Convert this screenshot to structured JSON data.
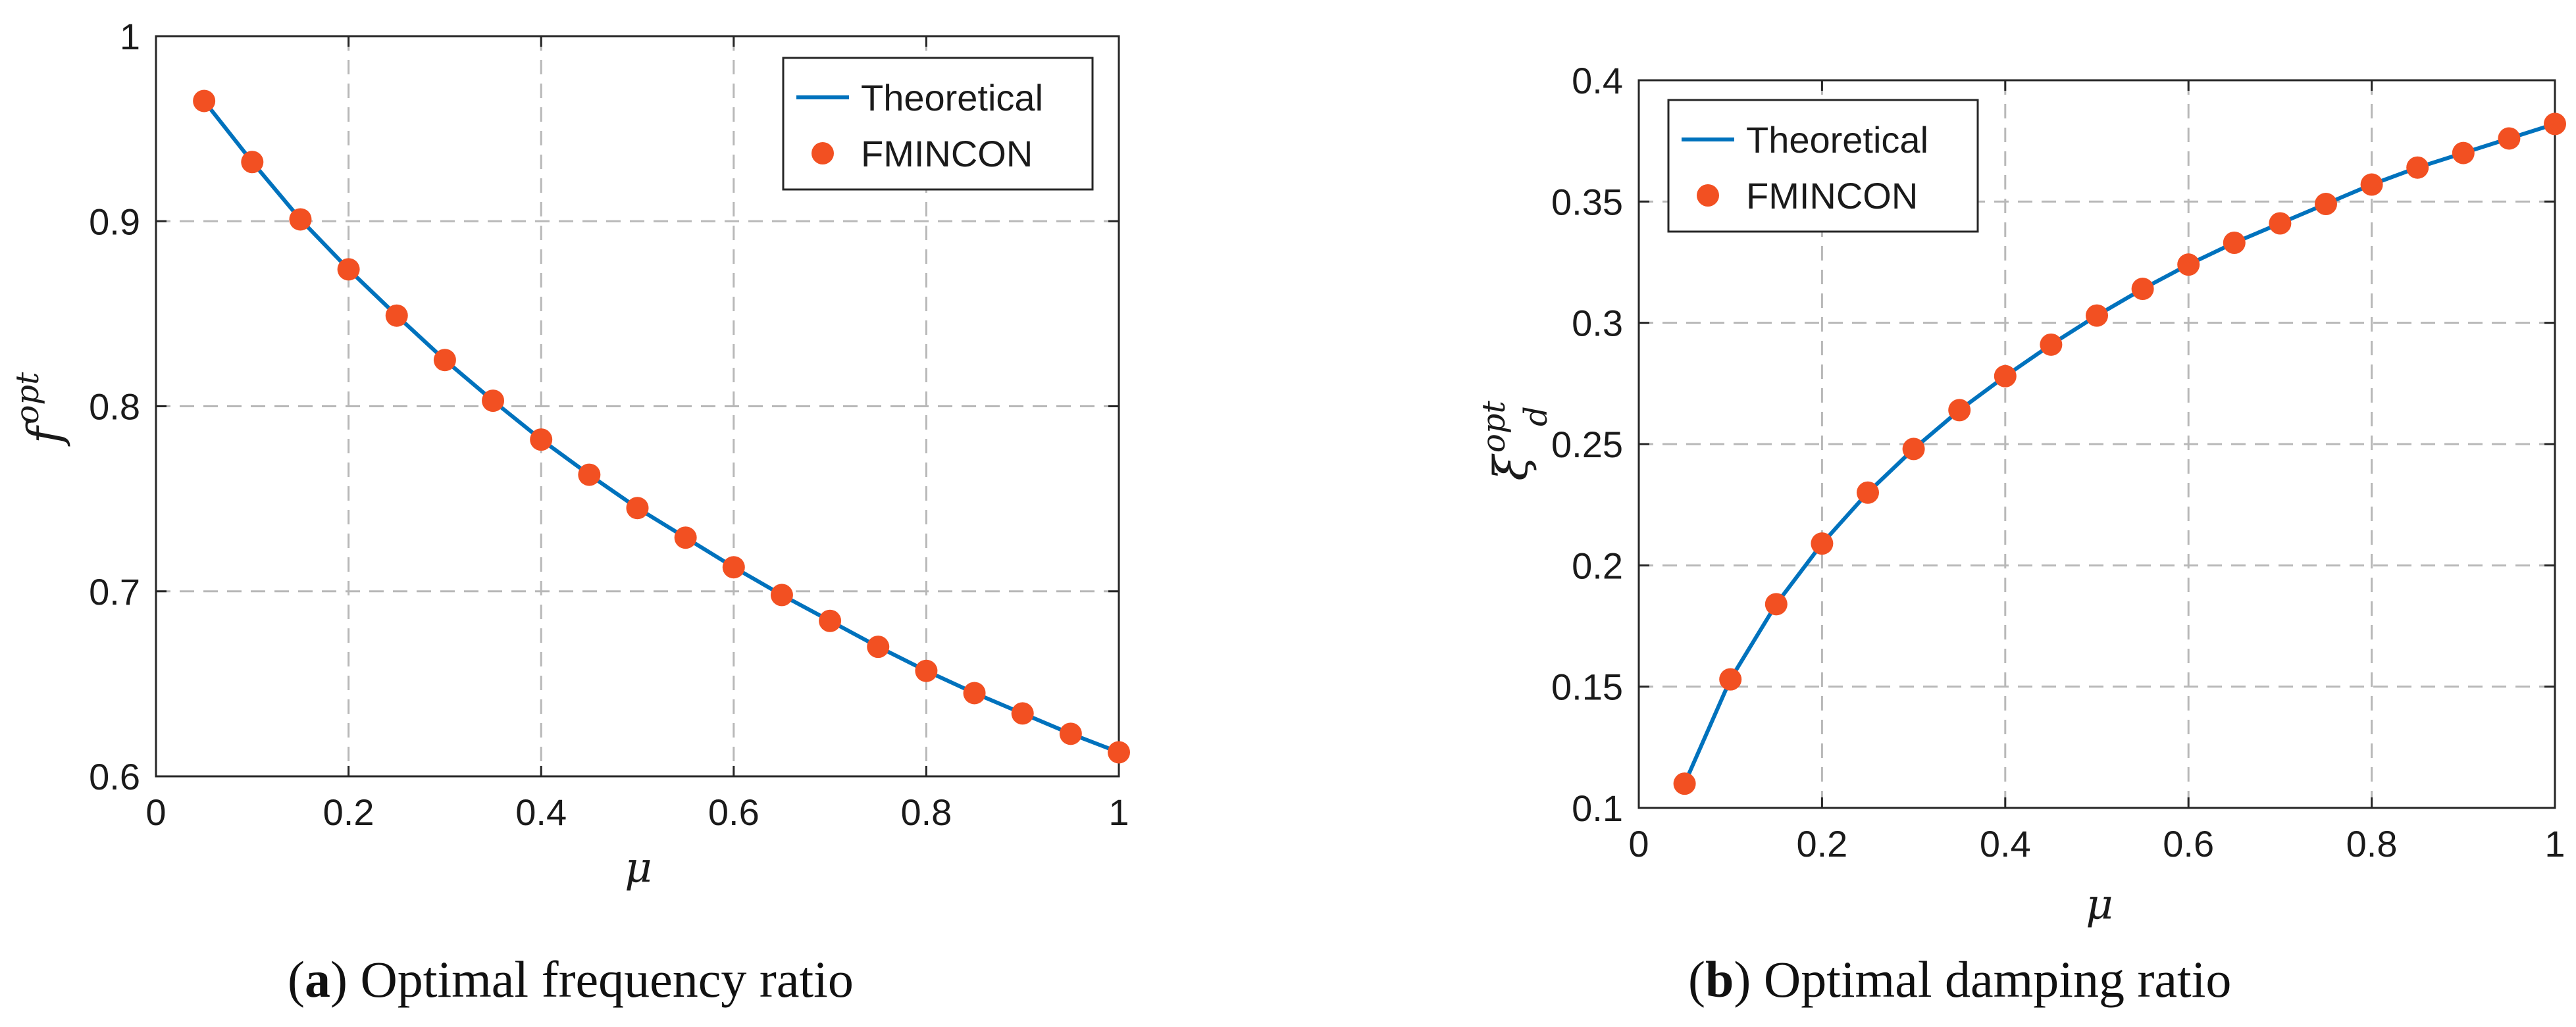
{
  "chart_data": [
    {
      "type": "line",
      "panel": "a",
      "caption_letter": "a",
      "caption_text": "Optimal frequency ratio",
      "xlabel": "μ",
      "ylabel_base": "f",
      "ylabel_sup": "opt",
      "xlim": [
        0,
        1
      ],
      "ylim": [
        0.6,
        1
      ],
      "xticks": [
        0,
        0.2,
        0.4,
        0.6,
        0.8,
        1
      ],
      "xtick_labels": [
        "0",
        "0.2",
        "0.4",
        "0.6",
        "0.8",
        "1"
      ],
      "yticks": [
        0.6,
        0.7,
        0.8,
        0.9,
        1
      ],
      "ytick_labels": [
        "0.6",
        "0.7",
        "0.8",
        "0.9",
        "1"
      ],
      "grid": true,
      "legend_position": "top-right",
      "legend": [
        "Theoretical",
        "FMINCON"
      ],
      "series": [
        {
          "name": "Theoretical",
          "style": "line",
          "color": "#0072BD",
          "x": [
            0.05,
            0.1,
            0.15,
            0.2,
            0.25,
            0.3,
            0.35,
            0.4,
            0.45,
            0.5,
            0.55,
            0.6,
            0.65,
            0.7,
            0.75,
            0.8,
            0.85,
            0.9,
            0.95,
            1.0
          ],
          "y": [
            0.965,
            0.932,
            0.901,
            0.874,
            0.849,
            0.825,
            0.803,
            0.782,
            0.763,
            0.745,
            0.729,
            0.713,
            0.698,
            0.684,
            0.67,
            0.657,
            0.645,
            0.634,
            0.623,
            0.613
          ]
        },
        {
          "name": "FMINCON",
          "style": "marker",
          "color": "#F25022",
          "x": [
            0.05,
            0.1,
            0.15,
            0.2,
            0.25,
            0.3,
            0.35,
            0.4,
            0.45,
            0.5,
            0.55,
            0.6,
            0.65,
            0.7,
            0.75,
            0.8,
            0.85,
            0.9,
            0.95,
            1.0
          ],
          "y": [
            0.965,
            0.932,
            0.901,
            0.874,
            0.849,
            0.825,
            0.803,
            0.782,
            0.763,
            0.745,
            0.729,
            0.713,
            0.698,
            0.684,
            0.67,
            0.657,
            0.645,
            0.634,
            0.623,
            0.613
          ]
        }
      ]
    },
    {
      "type": "line",
      "panel": "b",
      "caption_letter": "b",
      "caption_text": "Optimal damping ratio",
      "xlabel": "μ",
      "ylabel_base": "ξ",
      "ylabel_sup": "opt",
      "ylabel_sub": "d",
      "xlim": [
        0,
        1
      ],
      "ylim": [
        0.1,
        0.4
      ],
      "xticks": [
        0,
        0.2,
        0.4,
        0.6,
        0.8,
        1
      ],
      "xtick_labels": [
        "0",
        "0.2",
        "0.4",
        "0.6",
        "0.8",
        "1"
      ],
      "yticks": [
        0.1,
        0.15,
        0.2,
        0.25,
        0.3,
        0.35,
        0.4
      ],
      "ytick_labels": [
        "0.1",
        "0.15",
        "0.2",
        "0.25",
        "0.3",
        "0.35",
        "0.4"
      ],
      "grid": true,
      "legend_position": "top-left",
      "legend": [
        "Theoretical",
        "FMINCON"
      ],
      "series": [
        {
          "name": "Theoretical",
          "style": "line",
          "color": "#0072BD",
          "x": [
            0.05,
            0.1,
            0.15,
            0.2,
            0.25,
            0.3,
            0.35,
            0.4,
            0.45,
            0.5,
            0.55,
            0.6,
            0.65,
            0.7,
            0.75,
            0.8,
            0.85,
            0.9,
            0.95,
            1.0
          ],
          "y": [
            0.11,
            0.153,
            0.184,
            0.209,
            0.23,
            0.248,
            0.264,
            0.278,
            0.291,
            0.303,
            0.314,
            0.324,
            0.333,
            0.341,
            0.349,
            0.357,
            0.364,
            0.37,
            0.376,
            0.382
          ]
        },
        {
          "name": "FMINCON",
          "style": "marker",
          "color": "#F25022",
          "x": [
            0.05,
            0.1,
            0.15,
            0.2,
            0.25,
            0.3,
            0.35,
            0.4,
            0.45,
            0.5,
            0.55,
            0.6,
            0.65,
            0.7,
            0.75,
            0.8,
            0.85,
            0.9,
            0.95,
            1.0
          ],
          "y": [
            0.11,
            0.153,
            0.184,
            0.209,
            0.23,
            0.248,
            0.264,
            0.278,
            0.291,
            0.303,
            0.314,
            0.324,
            0.333,
            0.341,
            0.349,
            0.357,
            0.364,
            0.37,
            0.376,
            0.382
          ]
        }
      ]
    }
  ]
}
